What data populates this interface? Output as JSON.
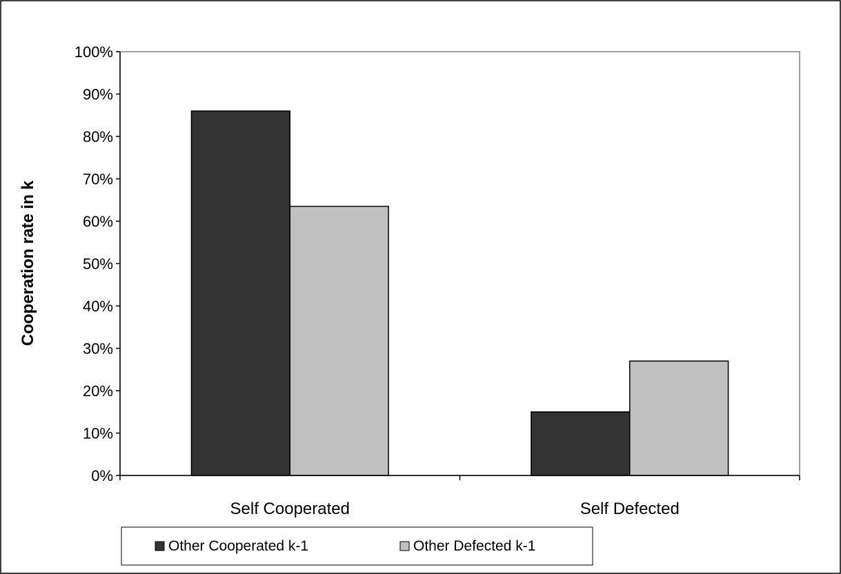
{
  "chart_data": {
    "type": "bar",
    "title": "",
    "xlabel": "",
    "ylabel": "Cooperation rate in k",
    "categories": [
      "Self Cooperated",
      "Self Defected"
    ],
    "series": [
      {
        "name": "Other Cooperated k-1",
        "values": [
          86,
          15
        ],
        "color": "#333333"
      },
      {
        "name": "Other Defected k-1",
        "values": [
          63.5,
          27
        ],
        "color": "#c0c0c0"
      }
    ],
    "ylim": [
      0,
      100
    ],
    "yticks": [
      0,
      10,
      20,
      30,
      40,
      50,
      60,
      70,
      80,
      90,
      100
    ],
    "ytick_labels": [
      "0%",
      "10%",
      "20%",
      "30%",
      "40%",
      "50%",
      "60%",
      "70%",
      "80%",
      "90%",
      "100%"
    ],
    "grid": false,
    "legend_position": "bottom"
  }
}
